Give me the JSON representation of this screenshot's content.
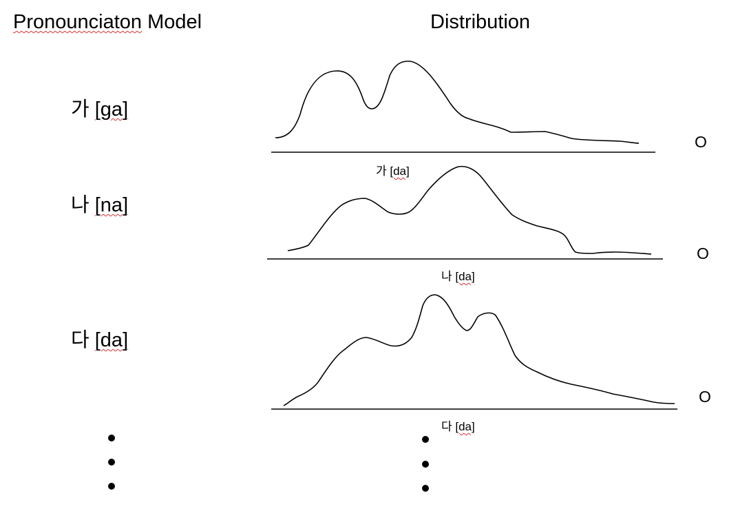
{
  "headers": {
    "model": "Pronounciaton Model",
    "distribution": "Distribution"
  },
  "rows": [
    {
      "model_char": "가",
      "model_roman": "[ga]",
      "dist_char": "가",
      "dist_roman": "[da]",
      "marker": "O"
    },
    {
      "model_char": "나",
      "model_roman": "[na]",
      "dist_char": "나",
      "dist_roman": "[da]",
      "marker": "O"
    },
    {
      "model_char": "다",
      "model_roman": "[da]",
      "dist_char": "다",
      "dist_roman": "[da]",
      "marker": "O"
    }
  ],
  "continuation": "more rows continue (vertical ellipsis)"
}
